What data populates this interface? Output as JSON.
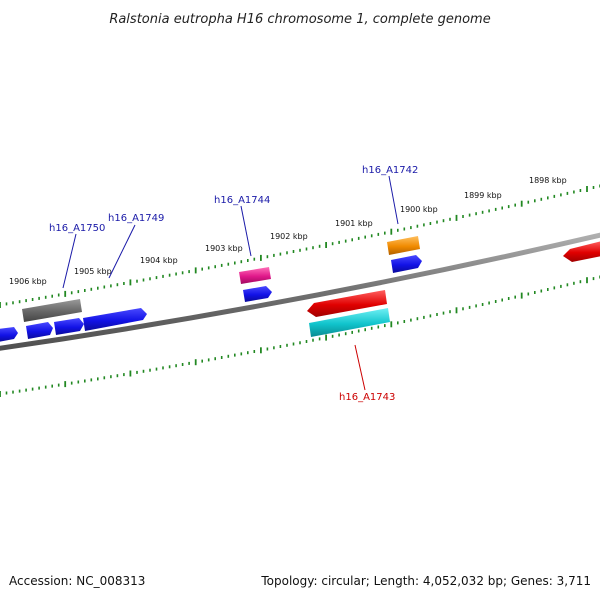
{
  "title": "Ralstonia eutropha H16 chromosome 1, complete genome",
  "footer": {
    "accession": "Accession: NC_008313",
    "summary": "Topology: circular; Length: 4,052,032 bp; Genes: 3,711"
  },
  "ticks": [
    "1906 kbp",
    "1905 kbp",
    "1904 kbp",
    "1903 kbp",
    "1902 kbp",
    "1901 kbp",
    "1900 kbp",
    "1899 kbp",
    "1898 kbp"
  ],
  "genes": [
    {
      "label": "h16_A1750",
      "color": "#1a1aa8"
    },
    {
      "label": "h16_A1749",
      "color": "#1a1aa8"
    },
    {
      "label": "h16_A1744",
      "color": "#1a1aa8"
    },
    {
      "label": "h16_A1742",
      "color": "#1a1aa8"
    },
    {
      "label": "h16_A1743",
      "color": "#cc0000"
    }
  ],
  "colors": {
    "backbone": "#808080",
    "tick": "#228822",
    "forward_gene": "#1515e0",
    "gray_gene": "#6e6e6e",
    "pink_gene": "#e8208a",
    "orange_gene": "#f08c00",
    "red_gene": "#e00000",
    "cyan_gene": "#10c8d0"
  }
}
